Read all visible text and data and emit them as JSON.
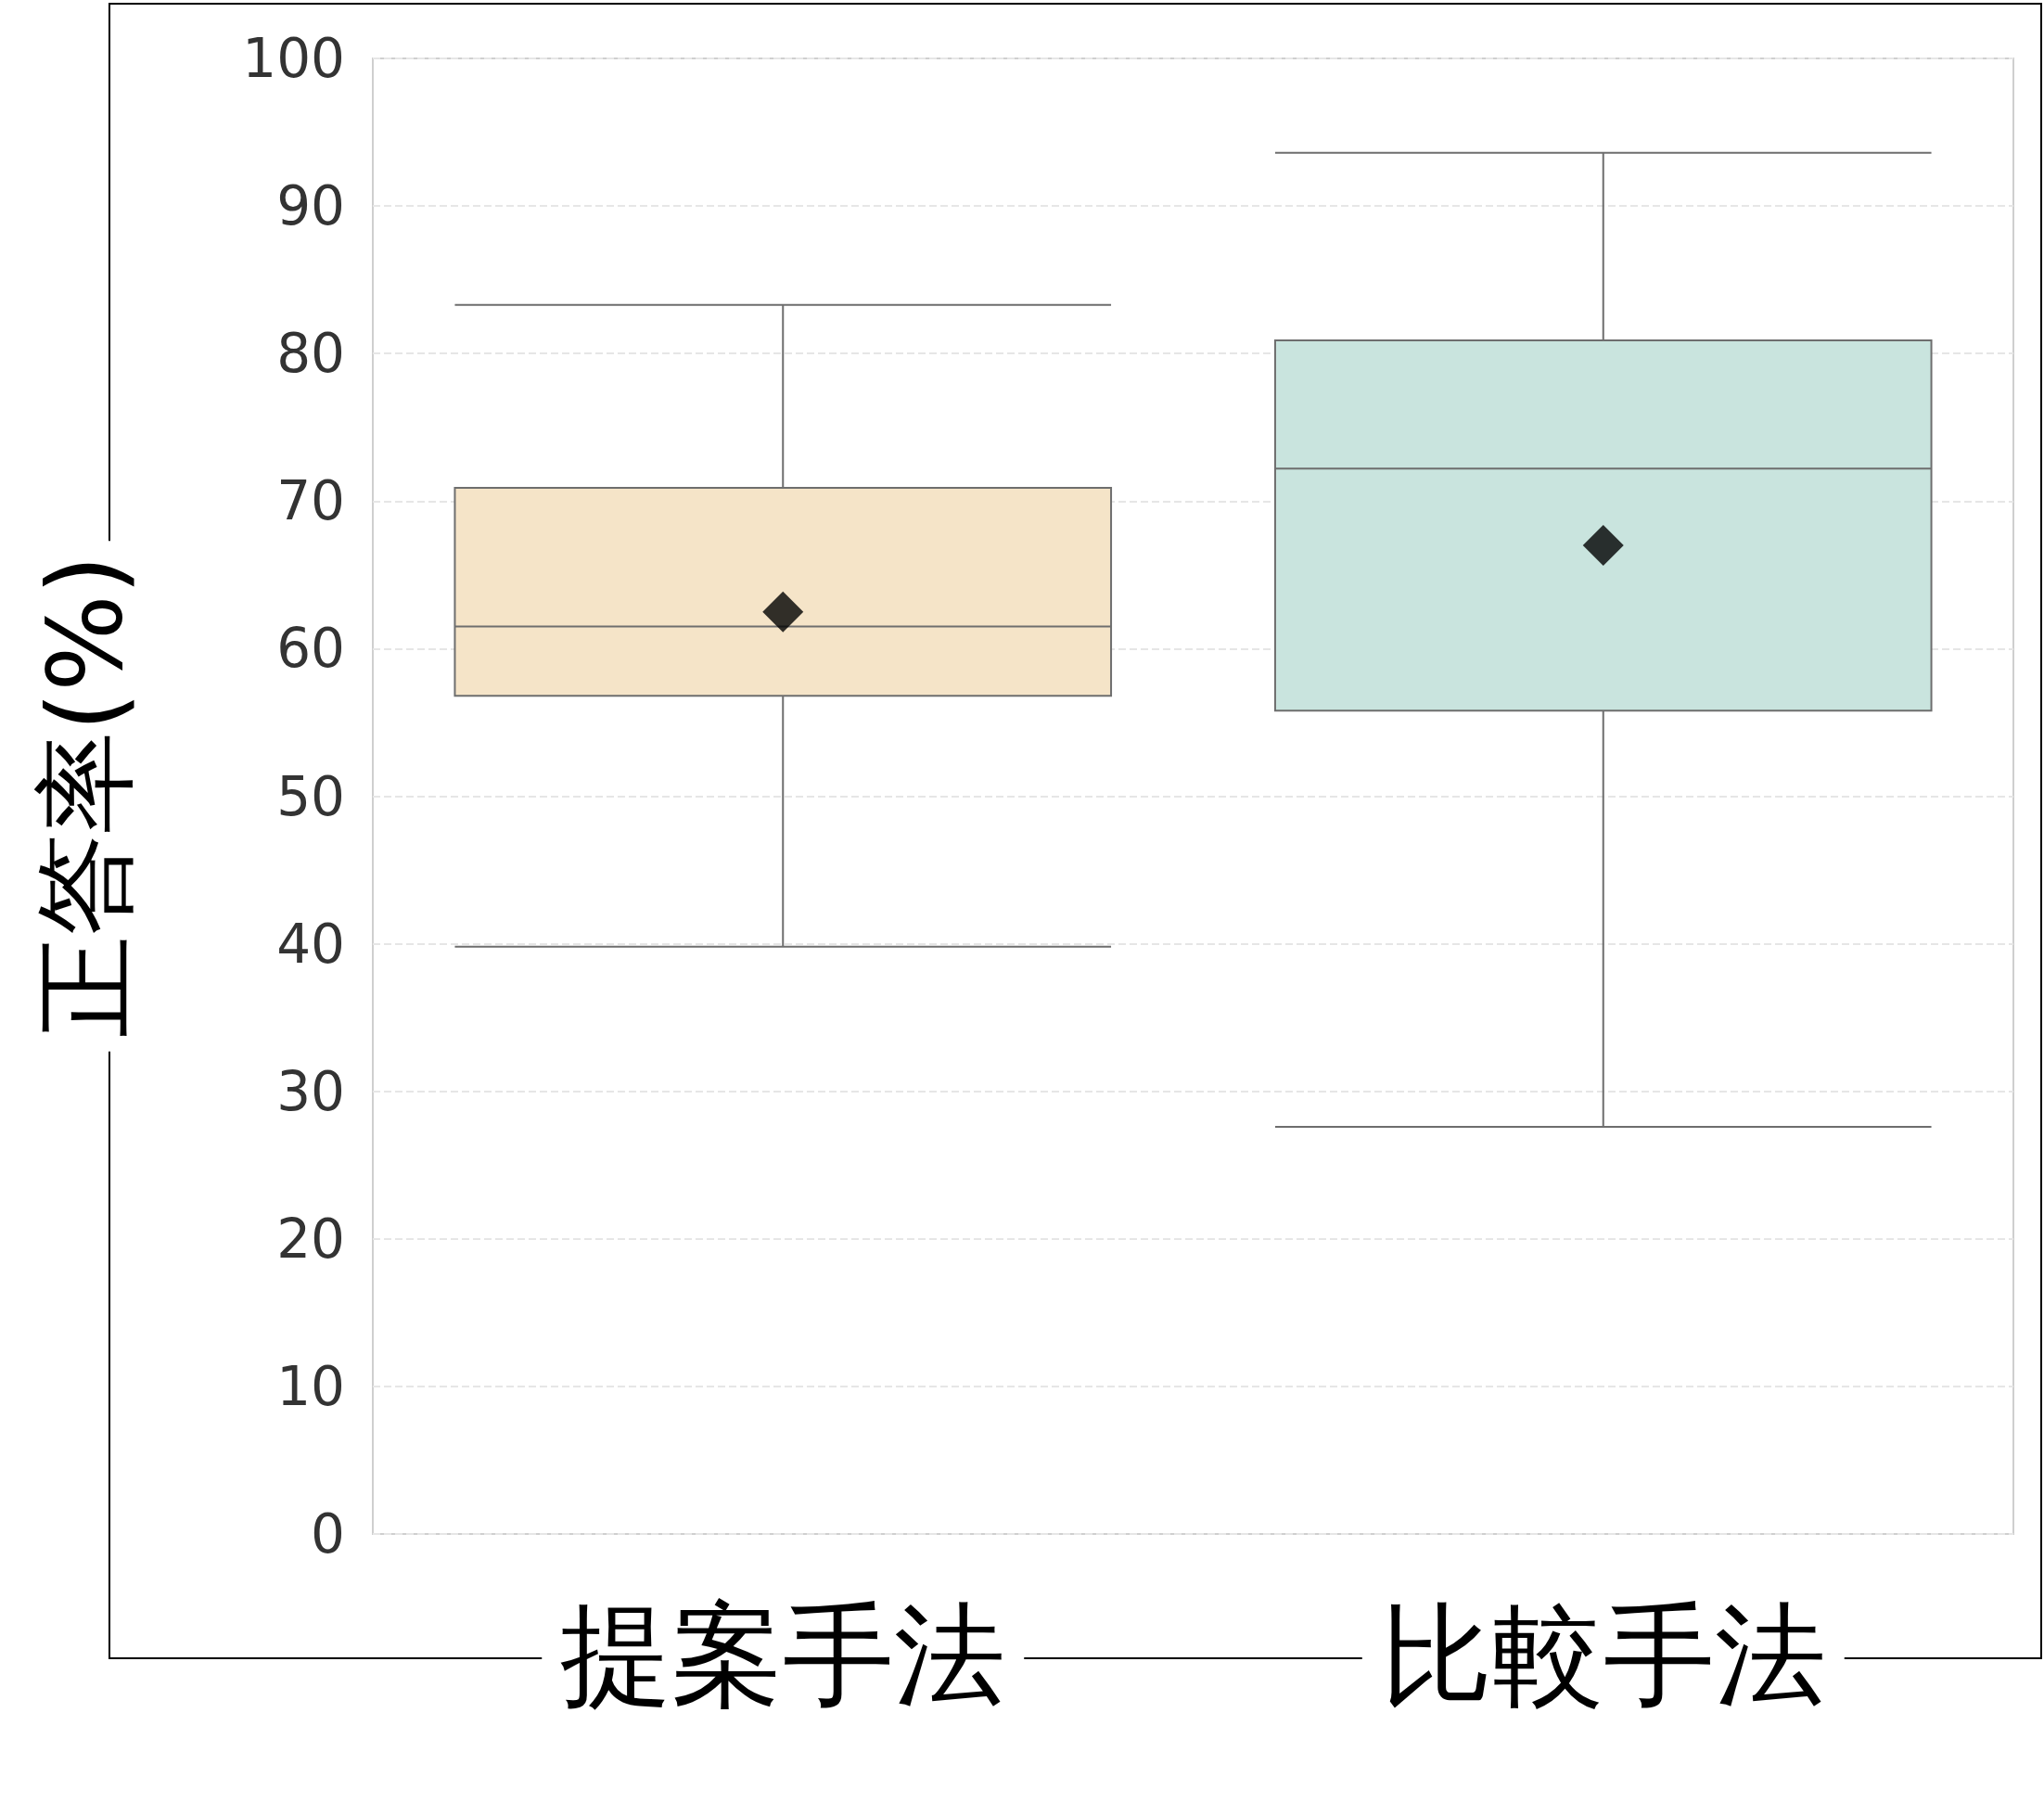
{
  "chart_data": {
    "type": "box",
    "ylabel": "正答率(%)",
    "categories": [
      "提案手法",
      "比較手法"
    ],
    "boxes": [
      {
        "low": 39.8,
        "q1": 56.8,
        "median": 61.5,
        "q3": 70.9,
        "high": 83.3,
        "mean": 62.5
      },
      {
        "low": 27.6,
        "q1": 55.8,
        "median": 72.2,
        "q3": 80.9,
        "high": 93.6,
        "mean": 67.0
      }
    ],
    "colors": [
      "#f5e4c8",
      "#c9e4de"
    ],
    "ylim": [
      0,
      100
    ],
    "yticks": [
      0,
      10,
      20,
      30,
      40,
      50,
      60,
      70,
      80,
      90,
      100
    ],
    "grid": "y",
    "marker": "diamond"
  }
}
